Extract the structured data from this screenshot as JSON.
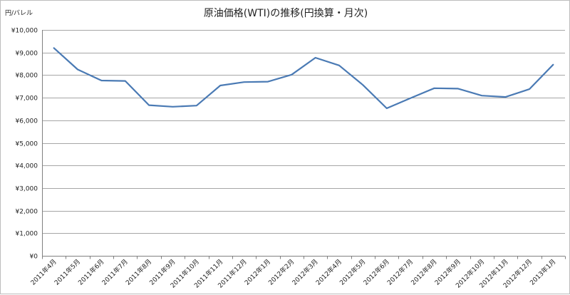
{
  "chart_data": {
    "type": "line",
    "title": "原油価格(WTI)の推移(円換算・月次)",
    "ylabel": "円/バレル",
    "xlabel": "",
    "ylim": [
      0,
      10000
    ],
    "ytick_values": [
      0,
      1000,
      2000,
      3000,
      4000,
      5000,
      6000,
      7000,
      8000,
      9000,
      10000
    ],
    "ytick_labels": [
      "¥0",
      "¥1,000",
      "¥2,000",
      "¥3,000",
      "¥4,000",
      "¥5,000",
      "¥6,000",
      "¥7,000",
      "¥8,000",
      "¥9,000",
      "¥10,000"
    ],
    "categories": [
      "2011年4月",
      "2011年5月",
      "2011年6月",
      "2011年7月",
      "2011年8月",
      "2011年9月",
      "2011年10月",
      "2011年11月",
      "2011年12月",
      "2012年1月",
      "2012年2月",
      "2012年3月",
      "2012年4月",
      "2012年5月",
      "2012年6月",
      "2012年7月",
      "2012年8月",
      "2012年9月",
      "2012年10月",
      "2012年11月",
      "2012年12月",
      "2013年1月"
    ],
    "series": [
      {
        "color": "#4a7ab4",
        "values": [
          9200,
          8250,
          7760,
          7740,
          6670,
          6600,
          6650,
          7540,
          7690,
          7710,
          8020,
          8770,
          8430,
          7560,
          6530,
          6980,
          7420,
          7400,
          7090,
          7030,
          7380,
          8460
        ]
      }
    ],
    "grid": true,
    "legend": "none"
  }
}
